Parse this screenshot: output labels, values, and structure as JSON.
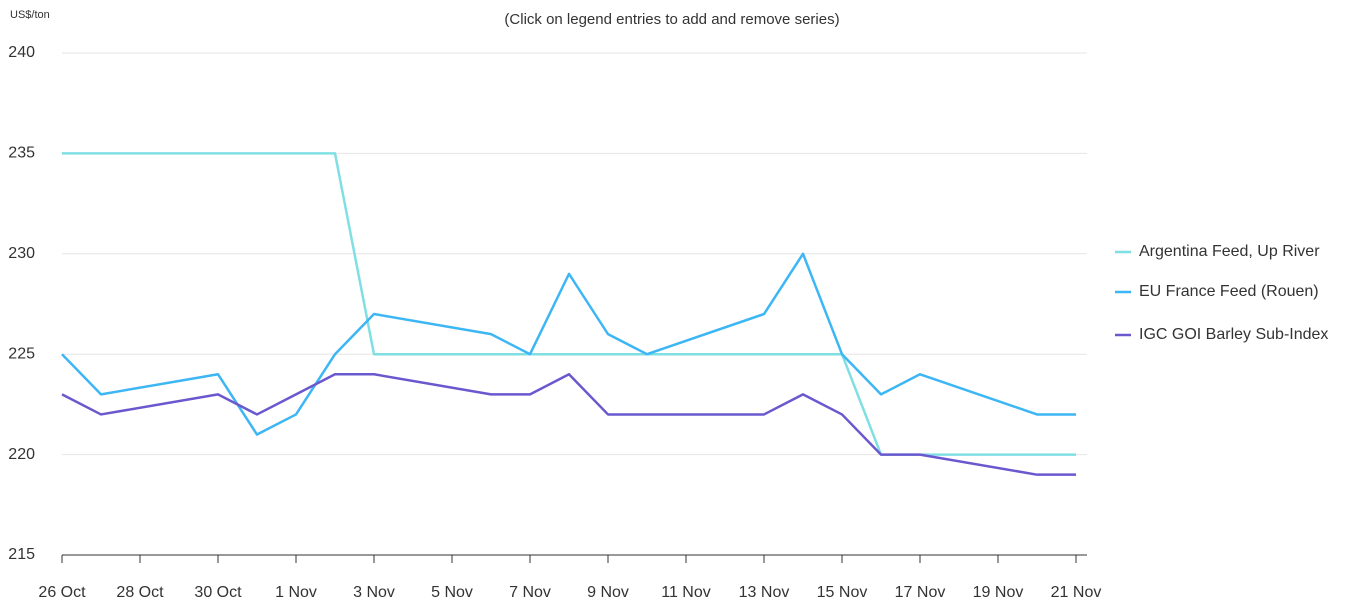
{
  "chart_data": {
    "type": "line",
    "subtitle": "(Click on legend entries to add and remove series)",
    "y_axis_label": "US$/ton",
    "x": [
      "26 Oct",
      "27 Oct",
      "30 Oct",
      "31 Oct",
      "1 Nov",
      "2 Nov",
      "3 Nov",
      "6 Nov",
      "7 Nov",
      "8 Nov",
      "9 Nov",
      "10 Nov",
      "13 Nov",
      "14 Nov",
      "15 Nov",
      "16 Nov",
      "17 Nov",
      "20 Nov",
      "21 Nov"
    ],
    "xticks": [
      "26 Oct",
      "28 Oct",
      "30 Oct",
      "1 Nov",
      "3 Nov",
      "5 Nov",
      "7 Nov",
      "9 Nov",
      "11 Nov",
      "13 Nov",
      "15 Nov",
      "17 Nov",
      "19 Nov",
      "21 Nov"
    ],
    "ylim": [
      215,
      240
    ],
    "yticks": [
      215,
      220,
      225,
      230,
      235,
      240
    ],
    "grid": true,
    "legend": "right",
    "series": [
      {
        "name": "Argentina Feed, Up River",
        "color": "#80dfe2",
        "values": [
          235,
          235,
          235,
          235,
          235,
          235,
          225,
          225,
          225,
          225,
          225,
          225,
          225,
          225,
          225,
          220,
          220,
          220,
          220
        ]
      },
      {
        "name": "EU France Feed (Rouen)",
        "color": "#3db6f5",
        "values": [
          225,
          223,
          224,
          221,
          222,
          225,
          227,
          226,
          225,
          229,
          226,
          225,
          227,
          230,
          225,
          223,
          224,
          222,
          222
        ]
      },
      {
        "name": "IGC GOI Barley Sub-Index",
        "color": "#6a58cf",
        "values": [
          223,
          222,
          223,
          222,
          223,
          224,
          224,
          223,
          223,
          224,
          222,
          222,
          222,
          223,
          222,
          220,
          220,
          219,
          219
        ]
      }
    ]
  }
}
